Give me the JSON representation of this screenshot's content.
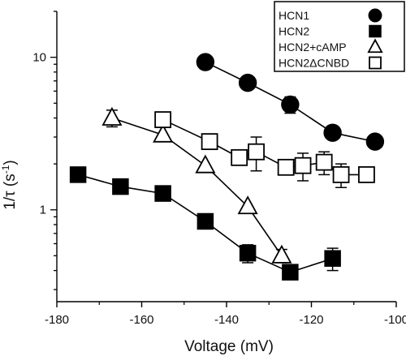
{
  "chart_data": {
    "type": "scatter",
    "xlabel": "Voltage (mV)",
    "ylabel_main": "1/τ (s",
    "ylabel_sup": "-1",
    "ylabel_end": ")",
    "xlim": [
      -180,
      -100
    ],
    "ylim": [
      0.25,
      20
    ],
    "y_scale": "log",
    "grid": false,
    "legend_position": "top-right",
    "x_ticks": [
      -180,
      -160,
      -140,
      -120,
      -100
    ],
    "x_tick_labels": [
      "-180",
      "-160",
      "-140",
      "-120",
      "-100"
    ],
    "y_ticks": [
      1,
      10
    ],
    "y_tick_labels": [
      "1",
      "10"
    ],
    "series": [
      {
        "name": "HCN1",
        "marker": "filled-circle",
        "color": "#000000",
        "x": [
          -145,
          -135,
          -125,
          -115,
          -105
        ],
        "y": [
          9.3,
          6.8,
          4.9,
          3.2,
          2.8
        ],
        "err": [
          0,
          0,
          0.6,
          0,
          0
        ]
      },
      {
        "name": "HCN2",
        "marker": "filled-square",
        "color": "#000000",
        "x": [
          -175,
          -165,
          -155,
          -145,
          -135,
          -125,
          -115
        ],
        "y": [
          1.7,
          1.42,
          1.28,
          0.84,
          0.52,
          0.39,
          0.48
        ],
        "err": [
          0,
          0,
          0,
          0,
          0.07,
          0,
          0.08
        ]
      },
      {
        "name": "HCN2+cAMP",
        "marker": "open-triangle",
        "color": "#000000",
        "x": [
          -167,
          -155,
          -145,
          -135,
          -127
        ],
        "y": [
          4.0,
          3.1,
          1.95,
          1.05,
          0.5
        ],
        "err": [
          0.5,
          0,
          0,
          0,
          0.05
        ]
      },
      {
        "name": "HCN2ΔCNBD",
        "marker": "open-square",
        "color": "#000000",
        "x": [
          -155,
          -144,
          -137,
          -133,
          -126,
          -122,
          -117,
          -113,
          -107
        ],
        "y": [
          3.9,
          2.8,
          2.2,
          2.4,
          1.9,
          1.95,
          2.05,
          1.7,
          1.7
        ],
        "err": [
          0,
          0,
          0,
          0.6,
          0,
          0.4,
          0.35,
          0.3,
          0
        ]
      }
    ]
  }
}
